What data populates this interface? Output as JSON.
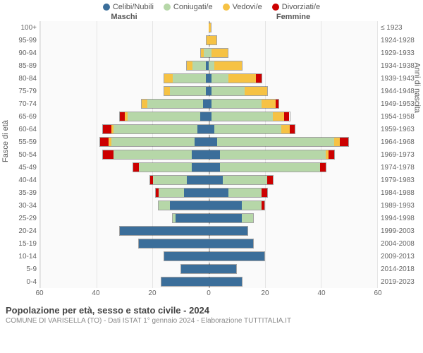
{
  "legend": [
    {
      "label": "Celibi/Nubili",
      "color": "#3b6e9a"
    },
    {
      "label": "Coniugati/e",
      "color": "#b6d7a8"
    },
    {
      "label": "Vedovi/e",
      "color": "#f6c244"
    },
    {
      "label": "Divorziati/e",
      "color": "#cc0000"
    }
  ],
  "header": {
    "maschi": "Maschi",
    "femmine": "Femmine"
  },
  "yaxis_title_left": "Fasce di età",
  "yaxis_title_right": "Anni di nascita",
  "xaxis": {
    "min": -60,
    "max": 60,
    "ticks": [
      -60,
      -40,
      -20,
      0,
      20,
      40,
      60
    ],
    "labels": [
      "60",
      "40",
      "20",
      "0",
      "20",
      "40",
      "60"
    ]
  },
  "footer": {
    "title": "Popolazione per età, sesso e stato civile - 2024",
    "subtitle": "COMUNE DI VARISELLA (TO) - Dati ISTAT 1° gennaio 2024 - Elaborazione TUTTITALIA.IT"
  },
  "colors": {
    "bg": "#fafafa",
    "grid": "#e5e5e5",
    "centerline": "#bbbbbb",
    "text": "#666666"
  },
  "rows": [
    {
      "age": "100+",
      "birth": "≤ 1923",
      "m": {
        "cel": 0,
        "con": 0,
        "ved": 0,
        "div": 0
      },
      "f": {
        "cel": 0,
        "con": 0,
        "ved": 1,
        "div": 0
      }
    },
    {
      "age": "95-99",
      "birth": "1924-1928",
      "m": {
        "cel": 0,
        "con": 0,
        "ved": 1,
        "div": 0
      },
      "f": {
        "cel": 0,
        "con": 0,
        "ved": 3,
        "div": 0
      }
    },
    {
      "age": "90-94",
      "birth": "1929-1933",
      "m": {
        "cel": 0,
        "con": 2,
        "ved": 1,
        "div": 0
      },
      "f": {
        "cel": 0,
        "con": 1,
        "ved": 6,
        "div": 0
      }
    },
    {
      "age": "85-89",
      "birth": "1934-1938",
      "m": {
        "cel": 1,
        "con": 5,
        "ved": 2,
        "div": 0
      },
      "f": {
        "cel": 0,
        "con": 2,
        "ved": 10,
        "div": 0
      }
    },
    {
      "age": "80-84",
      "birth": "1939-1943",
      "m": {
        "cel": 1,
        "con": 12,
        "ved": 3,
        "div": 0
      },
      "f": {
        "cel": 1,
        "con": 6,
        "ved": 10,
        "div": 2
      }
    },
    {
      "age": "75-79",
      "birth": "1944-1948",
      "m": {
        "cel": 1,
        "con": 13,
        "ved": 2,
        "div": 0
      },
      "f": {
        "cel": 1,
        "con": 12,
        "ved": 8,
        "div": 0
      }
    },
    {
      "age": "70-74",
      "birth": "1949-1953",
      "m": {
        "cel": 2,
        "con": 20,
        "ved": 2,
        "div": 0
      },
      "f": {
        "cel": 1,
        "con": 18,
        "ved": 5,
        "div": 1
      }
    },
    {
      "age": "65-69",
      "birth": "1954-1958",
      "m": {
        "cel": 3,
        "con": 26,
        "ved": 1,
        "div": 2
      },
      "f": {
        "cel": 1,
        "con": 22,
        "ved": 4,
        "div": 2
      }
    },
    {
      "age": "60-64",
      "birth": "1959-1963",
      "m": {
        "cel": 4,
        "con": 30,
        "ved": 1,
        "div": 3
      },
      "f": {
        "cel": 2,
        "con": 24,
        "ved": 3,
        "div": 2
      }
    },
    {
      "age": "55-59",
      "birth": "1964-1968",
      "m": {
        "cel": 5,
        "con": 30,
        "ved": 1,
        "div": 3
      },
      "f": {
        "cel": 3,
        "con": 42,
        "ved": 2,
        "div": 3
      }
    },
    {
      "age": "50-54",
      "birth": "1969-1973",
      "m": {
        "cel": 6,
        "con": 28,
        "ved": 0,
        "div": 4
      },
      "f": {
        "cel": 4,
        "con": 38,
        "ved": 1,
        "div": 2
      }
    },
    {
      "age": "45-49",
      "birth": "1974-1978",
      "m": {
        "cel": 6,
        "con": 19,
        "ved": 0,
        "div": 2
      },
      "f": {
        "cel": 4,
        "con": 36,
        "ved": 0,
        "div": 2
      }
    },
    {
      "age": "40-44",
      "birth": "1979-1983",
      "m": {
        "cel": 8,
        "con": 12,
        "ved": 0,
        "div": 1
      },
      "f": {
        "cel": 5,
        "con": 16,
        "ved": 0,
        "div": 2
      }
    },
    {
      "age": "35-39",
      "birth": "1984-1988",
      "m": {
        "cel": 9,
        "con": 9,
        "ved": 0,
        "div": 1
      },
      "f": {
        "cel": 7,
        "con": 12,
        "ved": 0,
        "div": 2
      }
    },
    {
      "age": "30-34",
      "birth": "1989-1993",
      "m": {
        "cel": 14,
        "con": 4,
        "ved": 0,
        "div": 0
      },
      "f": {
        "cel": 12,
        "con": 7,
        "ved": 0,
        "div": 1
      }
    },
    {
      "age": "25-29",
      "birth": "1994-1998",
      "m": {
        "cel": 12,
        "con": 1,
        "ved": 0,
        "div": 0
      },
      "f": {
        "cel": 12,
        "con": 4,
        "ved": 0,
        "div": 0
      }
    },
    {
      "age": "20-24",
      "birth": "1999-2003",
      "m": {
        "cel": 32,
        "con": 0,
        "ved": 0,
        "div": 0
      },
      "f": {
        "cel": 14,
        "con": 0,
        "ved": 0,
        "div": 0
      }
    },
    {
      "age": "15-19",
      "birth": "2004-2008",
      "m": {
        "cel": 25,
        "con": 0,
        "ved": 0,
        "div": 0
      },
      "f": {
        "cel": 16,
        "con": 0,
        "ved": 0,
        "div": 0
      }
    },
    {
      "age": "10-14",
      "birth": "2009-2013",
      "m": {
        "cel": 16,
        "con": 0,
        "ved": 0,
        "div": 0
      },
      "f": {
        "cel": 20,
        "con": 0,
        "ved": 0,
        "div": 0
      }
    },
    {
      "age": "5-9",
      "birth": "2014-2018",
      "m": {
        "cel": 10,
        "con": 0,
        "ved": 0,
        "div": 0
      },
      "f": {
        "cel": 10,
        "con": 0,
        "ved": 0,
        "div": 0
      }
    },
    {
      "age": "0-4",
      "birth": "2019-2023",
      "m": {
        "cel": 17,
        "con": 0,
        "ved": 0,
        "div": 0
      },
      "f": {
        "cel": 12,
        "con": 0,
        "ved": 0,
        "div": 0
      }
    }
  ]
}
